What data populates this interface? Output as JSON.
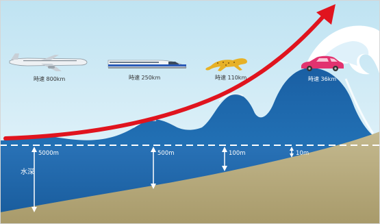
{
  "colors": {
    "sky_top": "#bfe3f2",
    "sky_bottom": "#e9f6fb",
    "ocean": "#1f66aa",
    "ocean_dark": "#144f8c",
    "seabed": "#b9ac7f",
    "arrow": "#e0141e",
    "car": "#e2336f",
    "cheetah": "#e7b126",
    "foam": "#ffffff"
  },
  "objects": [
    {
      "name": "airplane",
      "icon": "airplane-icon",
      "speed_label": "時速 800km"
    },
    {
      "name": "bullet-train",
      "icon": "bullet-train-icon",
      "speed_label": "時速 250km"
    },
    {
      "name": "cheetah",
      "icon": "cheetah-icon",
      "speed_label": "時速 110km"
    },
    {
      "name": "car",
      "icon": "car-icon",
      "speed_label": "時速 36km"
    }
  ],
  "depths": [
    {
      "label": "5000m"
    },
    {
      "label": "500m"
    },
    {
      "label": "100m"
    },
    {
      "label": "10m"
    }
  ],
  "depth_axis_label": "水深"
}
